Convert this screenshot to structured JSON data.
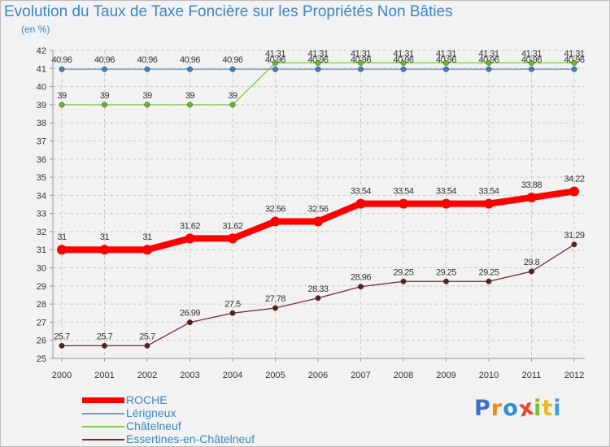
{
  "header": {
    "title": "Evolution du Taux de Taxe Foncière sur les Propriétés Non Bâties",
    "unit": "(en %)"
  },
  "logo": {
    "letters": [
      "P",
      "r",
      "o",
      "x",
      "i",
      "t",
      "i"
    ],
    "colors": [
      "#3b6fc4",
      "#f08a1e",
      "#2e8fd0",
      "#e8452c",
      "#7bbf2a",
      "#f3b41b",
      "#3b9fd8"
    ]
  },
  "colors": {
    "text": "#3b87c4",
    "grid": "#cccccc",
    "axis": "#999999"
  },
  "chart_data": {
    "type": "line",
    "title": "Evolution du Taux de Taxe Foncière sur les Propriétés Non Bâties",
    "ylabel": "(en %)",
    "xlabel": "",
    "x": [
      "2000",
      "2001",
      "2002",
      "2003",
      "2004",
      "2005",
      "2006",
      "2007",
      "2008",
      "2009",
      "2010",
      "2011",
      "2012"
    ],
    "ylim": [
      25,
      42
    ],
    "yticks": [
      25,
      26,
      27,
      28,
      29,
      30,
      31,
      32,
      33,
      34,
      35,
      36,
      37,
      38,
      39,
      40,
      41,
      42
    ],
    "grid": true,
    "legend_position": "bottom-left",
    "series": [
      {
        "name": "ROCHE",
        "color": "#ff0000",
        "values": [
          31,
          31,
          31,
          31.62,
          31.62,
          32.56,
          32.56,
          33.54,
          33.54,
          33.54,
          33.54,
          33.88,
          34.22
        ],
        "labels": [
          "31",
          "31",
          "31",
          "31.62",
          "31.62",
          "32.56",
          "32.56",
          "33.54",
          "33.54",
          "33.54",
          "33.54",
          "33.88",
          "34.22"
        ]
      },
      {
        "name": "Lérigneux",
        "color": "#6a9fd0",
        "dot_color": "#3b7fc4",
        "values": [
          40.96,
          40.96,
          40.96,
          40.96,
          40.96,
          40.96,
          40.96,
          40.96,
          40.96,
          40.96,
          40.96,
          40.96,
          40.96
        ],
        "labels": [
          "40.96",
          "40.96",
          "40.96",
          "40.96",
          "40.96",
          "40.96",
          "40.96",
          "40.96",
          "40.96",
          "40.96",
          "40.96",
          "40.96",
          "40.96"
        ]
      },
      {
        "name": "Châtelneuf",
        "color": "#7ccc44",
        "dot_color": "#66bb22",
        "values": [
          39,
          39,
          39,
          39,
          39,
          41.31,
          41.31,
          41.31,
          41.31,
          41.31,
          41.31,
          41.31,
          41.31
        ],
        "labels": [
          "39",
          "39",
          "39",
          "39",
          "39",
          "41.31",
          "41.31",
          "41.31",
          "41.31",
          "41.31",
          "41.31",
          "41.31",
          "41.31"
        ]
      },
      {
        "name": "Essertines-en-Châtelneuf",
        "color": "#7a2a2a",
        "dot_color": "#5e1d1d",
        "values": [
          25.7,
          25.7,
          25.7,
          26.99,
          27.5,
          27.78,
          28.33,
          28.96,
          29.25,
          29.25,
          29.25,
          29.8,
          31.29
        ],
        "labels": [
          "25.7",
          "25.7",
          "25.7",
          "26.99",
          "27.5",
          "27.78",
          "28.33",
          "28.96",
          "29.25",
          "29.25",
          "29.25",
          "29.8",
          "31.29"
        ]
      }
    ]
  }
}
